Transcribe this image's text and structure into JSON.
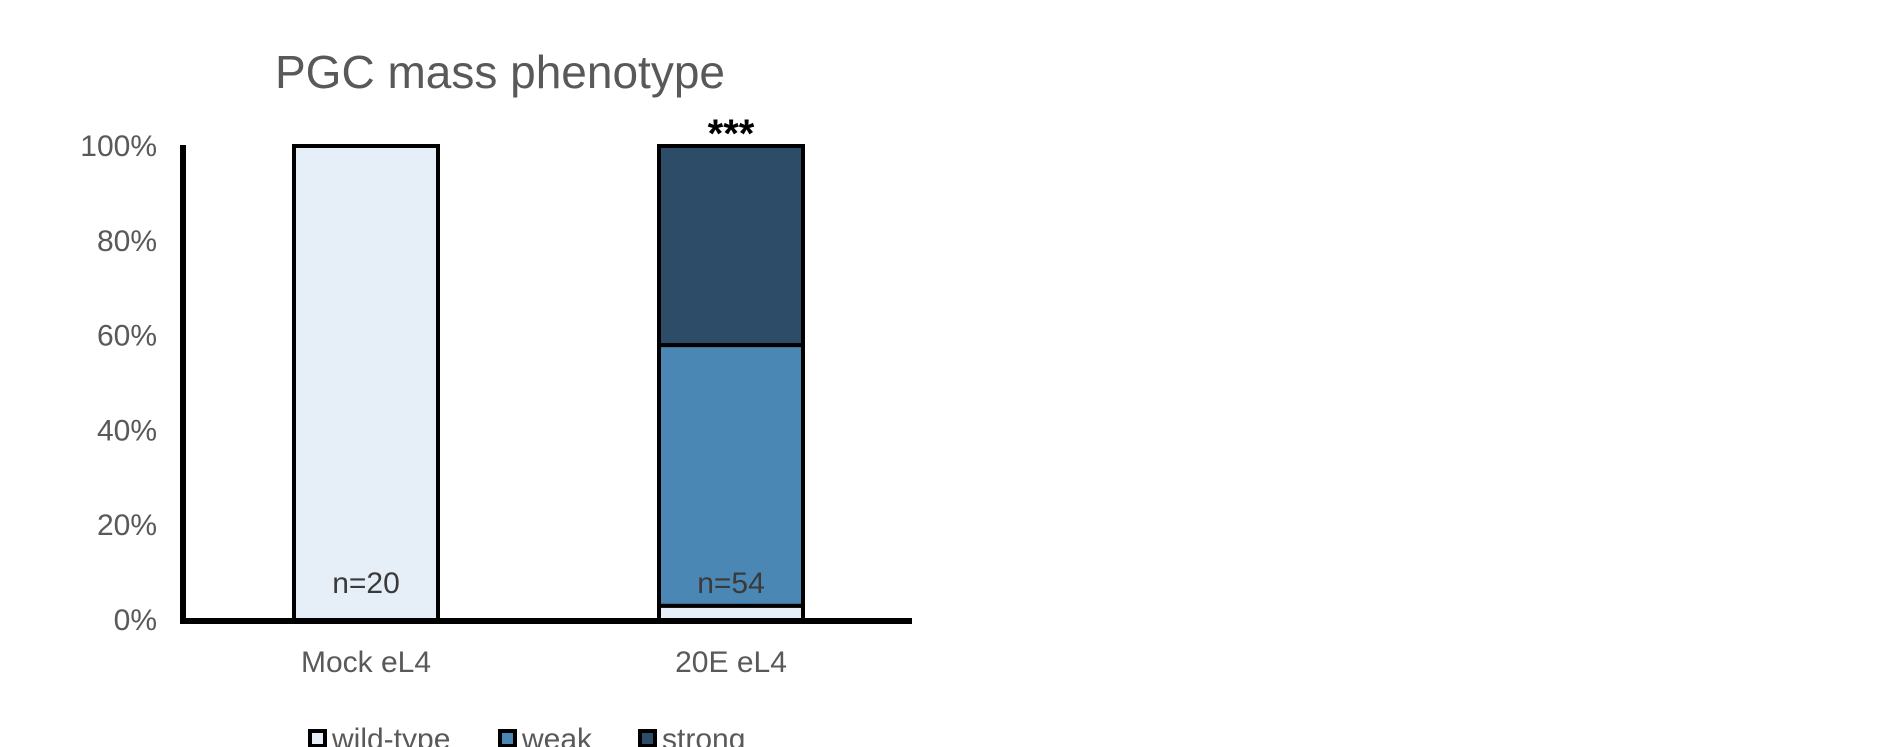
{
  "chart_data": {
    "type": "bar",
    "stacked": true,
    "title": "PGC mass phenotype",
    "categories": [
      "Mock eL4",
      "20E eL4"
    ],
    "series": [
      {
        "name": "wild-type",
        "color": "#e6eef7",
        "values": [
          100,
          3
        ]
      },
      {
        "name": "weak",
        "color": "#4b87b4",
        "values": [
          0,
          55
        ]
      },
      {
        "name": "strong",
        "color": "#2c4c67",
        "values": [
          0,
          42
        ]
      }
    ],
    "annotations": [
      "n=20",
      "n=54"
    ],
    "significance": [
      "",
      "***"
    ],
    "ylim": [
      0,
      100
    ],
    "yticks": [
      "0%",
      "20%",
      "40%",
      "60%",
      "80%",
      "100%"
    ],
    "xlabel": "",
    "ylabel": "",
    "legend_position": "bottom"
  }
}
